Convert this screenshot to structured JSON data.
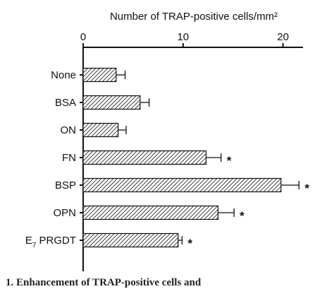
{
  "chart_data": {
    "type": "bar",
    "orientation": "horizontal",
    "title": "",
    "xlabel": "Number of TRAP-positive cells/mm²",
    "ylabel": "",
    "xlim": [
      0,
      22
    ],
    "x_ticks": [
      0,
      10,
      20
    ],
    "x_axis_position": "top",
    "grid": false,
    "categories": [
      "None",
      "BSA",
      "ON",
      "FN",
      "BSP",
      "OPN",
      "E7 PRGDT"
    ],
    "category_labels": [
      {
        "main": "None",
        "sub": "",
        "rest": ""
      },
      {
        "main": "BSA",
        "sub": "",
        "rest": ""
      },
      {
        "main": "ON",
        "sub": "",
        "rest": ""
      },
      {
        "main": "FN",
        "sub": "",
        "rest": ""
      },
      {
        "main": "BSP",
        "sub": "",
        "rest": ""
      },
      {
        "main": "OPN",
        "sub": "",
        "rest": ""
      },
      {
        "main": "E",
        "sub": "7",
        "rest": " PRGDT"
      }
    ],
    "values": [
      3.3,
      5.7,
      3.5,
      12.3,
      19.8,
      13.5,
      9.5
    ],
    "errors": [
      0.9,
      0.9,
      0.8,
      1.5,
      1.8,
      1.6,
      0.4
    ],
    "significant": [
      false,
      false,
      false,
      true,
      true,
      true,
      true
    ],
    "significance_marker": "*",
    "bar_fill": "diagonal-hatch",
    "colors": {
      "ink": "#111111",
      "background": "#ffffff"
    }
  },
  "caption_fragment": "1.  Enhancement of TRAP-positive cells and"
}
